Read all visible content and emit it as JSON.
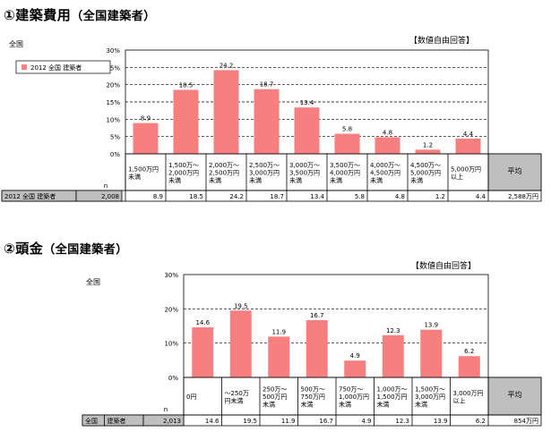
{
  "section1": {
    "title": "①建築費用",
    "title_sub": "（全国建築者）",
    "region_label": "全国",
    "note": "【数値自由回答】",
    "n_label": "n",
    "legend": "2012 全国 建築者",
    "avg_header": "平均",
    "row": {
      "label1": "2012 全国 建築者",
      "label2": "",
      "n": "2,008",
      "avg": "2,588万円"
    }
  },
  "section2": {
    "title": "②頭金",
    "title_sub": "（全国建築者）",
    "region_label": "全国",
    "note": "【数値自由回答】",
    "n_label": "n",
    "avg_header": "平均",
    "row": {
      "label1": "全国",
      "label2": "建築者",
      "n": "2,013",
      "avg": "854万円"
    }
  },
  "colors": {
    "bar": "#f77f7f",
    "avg_bg": "#bfbfbf",
    "row_bg": "#bfbfbf"
  },
  "chart_data": [
    {
      "type": "bar",
      "title": "①建築費用（全国建築者）",
      "categories": [
        "1,500万円\n未満",
        "1,500万～\n2,000万円\n未満",
        "2,000万～\n2,500万円\n未満",
        "2,500万～\n3,000万円\n未満",
        "3,000万～\n3,500万円\n未満",
        "3,500万～\n4,000万円\n未満",
        "4,000万～\n4,500万円\n未満",
        "4,500万～\n5,000万円\n未満",
        "5,000万円\n以上"
      ],
      "series": [
        {
          "name": "2012 全国 建築者",
          "values": [
            8.9,
            18.5,
            24.2,
            18.7,
            13.4,
            5.8,
            4.8,
            1.2,
            4.4
          ]
        }
      ],
      "value_labels": [
        "8.9",
        "18.5",
        "24.2",
        "18.7",
        "13.4",
        "5.8",
        "4.8",
        "1.2",
        "4.4"
      ],
      "yticks": [
        "0%",
        "5%",
        "10%",
        "15%",
        "20%",
        "25%",
        "30%"
      ],
      "ylim": [
        0,
        30
      ],
      "grid": true,
      "legend": "top-left"
    },
    {
      "type": "bar",
      "title": "②頭金（全国建築者）",
      "categories": [
        "0円",
        "～250万\n円未満",
        "250万～\n500万円\n未満",
        "500万～\n750万円\n未満",
        "750万～\n1,000万円\n未満",
        "1,000万～\n1,500万円\n未満",
        "1,500万～\n3,000万円\n未満",
        "3,000万円\n以上"
      ],
      "series": [
        {
          "values": [
            14.6,
            19.5,
            11.9,
            16.7,
            4.9,
            12.3,
            13.9,
            6.2
          ]
        }
      ],
      "value_labels": [
        "14.6",
        "19.5",
        "11.9",
        "16.7",
        "4.9",
        "12.3",
        "13.9",
        "6.2"
      ],
      "yticks": [
        "0%",
        "10%",
        "20%",
        "30%"
      ],
      "ylim": [
        0,
        30
      ],
      "grid": true,
      "legend": "none"
    }
  ]
}
